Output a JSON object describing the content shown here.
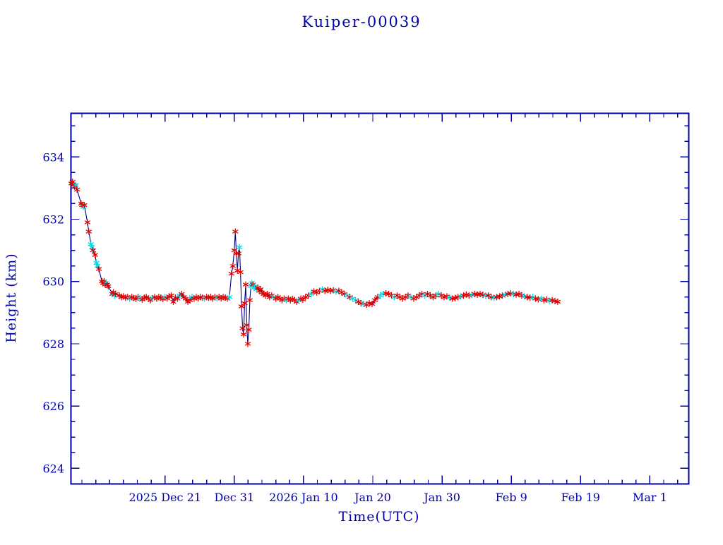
{
  "page": {
    "background": "#ffffff"
  },
  "chart_data": {
    "type": "line",
    "title": "Kuiper-00039",
    "xlabel": "Time(UTC)",
    "ylabel": "Height (km)",
    "legend": "none",
    "grid": false,
    "line_color": "#00008b",
    "axis_color": "#0000a8",
    "text_color": "#0000b2",
    "x_axis": {
      "days_relative_to": "2025 Dec 21",
      "range_days": [
        -13.58,
        75.62
      ],
      "minor_tick_step_days": 2,
      "ticks": [
        {
          "day": 0,
          "label": "2025 Dec 21"
        },
        {
          "day": 10,
          "label": "Dec 31"
        },
        {
          "day": 20,
          "label": "2026 Jan 10"
        },
        {
          "day": 30,
          "label": "Jan 20"
        },
        {
          "day": 40,
          "label": "Jan 30"
        },
        {
          "day": 50,
          "label": "Feb 9"
        },
        {
          "day": 60,
          "label": "Feb 19"
        },
        {
          "day": 70,
          "label": "Mar 1"
        }
      ]
    },
    "y_axis": {
      "range": [
        623.5,
        635.4
      ],
      "ticks": [
        624,
        626,
        628,
        630,
        632,
        634
      ],
      "minor_tick_step": 0.5
    },
    "series": [
      {
        "name": "height-red",
        "marker": "asterisk",
        "color": "#e00000"
      },
      {
        "name": "height-cyan",
        "marker": "asterisk",
        "color": "#00dce8"
      }
    ],
    "points_format": [
      "day_offset",
      "height_km",
      "series_index"
    ],
    "points": [
      [
        -13.5,
        633.15,
        0
      ],
      [
        -13.35,
        633.2,
        0
      ],
      [
        -13.2,
        633.1,
        0
      ],
      [
        -13.05,
        633.05,
        0
      ],
      [
        -12.9,
        633.1,
        1
      ],
      [
        -12.7,
        632.95,
        0
      ],
      [
        -12.1,
        632.5,
        0
      ],
      [
        -11.95,
        632.45,
        0
      ],
      [
        -11.8,
        632.4,
        1
      ],
      [
        -11.65,
        632.45,
        0
      ],
      [
        -11.2,
        631.9,
        0
      ],
      [
        -11.0,
        631.6,
        0
      ],
      [
        -10.7,
        631.2,
        1
      ],
      [
        -10.55,
        631.1,
        1
      ],
      [
        -10.4,
        631.0,
        0
      ],
      [
        -10.1,
        630.85,
        0
      ],
      [
        -9.9,
        630.6,
        1
      ],
      [
        -9.75,
        630.5,
        1
      ],
      [
        -9.55,
        630.4,
        0
      ],
      [
        -9.1,
        630.0,
        0
      ],
      [
        -8.95,
        629.95,
        0
      ],
      [
        -8.8,
        630.0,
        0
      ],
      [
        -8.65,
        629.9,
        0
      ],
      [
        -8.5,
        629.95,
        1
      ],
      [
        -8.35,
        629.9,
        0
      ],
      [
        -8.2,
        629.85,
        0
      ],
      [
        -7.6,
        629.6,
        0
      ],
      [
        -7.45,
        629.65,
        0
      ],
      [
        -7.3,
        629.55,
        1
      ],
      [
        -7.15,
        629.6,
        0
      ],
      [
        -6.6,
        629.55,
        0
      ],
      [
        -6.3,
        629.5,
        0
      ],
      [
        -6.0,
        629.52,
        0
      ],
      [
        -5.7,
        629.48,
        0
      ],
      [
        -5.4,
        629.5,
        0
      ],
      [
        -5.1,
        629.45,
        1
      ],
      [
        -4.8,
        629.5,
        0
      ],
      [
        -4.5,
        629.47,
        0
      ],
      [
        -4.2,
        629.44,
        0
      ],
      [
        -3.9,
        629.5,
        0
      ],
      [
        -3.6,
        629.46,
        1
      ],
      [
        -3.3,
        629.42,
        0
      ],
      [
        -3.0,
        629.48,
        0
      ],
      [
        -2.7,
        629.5,
        0
      ],
      [
        -2.4,
        629.45,
        0
      ],
      [
        -2.1,
        629.4,
        0
      ],
      [
        -1.8,
        629.47,
        1
      ],
      [
        -1.5,
        629.5,
        0
      ],
      [
        -1.2,
        629.45,
        0
      ],
      [
        -0.9,
        629.5,
        0
      ],
      [
        -0.6,
        629.48,
        0
      ],
      [
        -0.3,
        629.44,
        0
      ],
      [
        0,
        629.5,
        1
      ],
      [
        0.3,
        629.46,
        0
      ],
      [
        0.6,
        629.52,
        0
      ],
      [
        0.9,
        629.55,
        0
      ],
      [
        1.2,
        629.35,
        0
      ],
      [
        1.5,
        629.48,
        0
      ],
      [
        1.8,
        629.45,
        0
      ],
      [
        2.1,
        629.55,
        1
      ],
      [
        2.4,
        629.6,
        0
      ],
      [
        2.7,
        629.5,
        0
      ],
      [
        3.0,
        629.45,
        0
      ],
      [
        3.3,
        629.35,
        0
      ],
      [
        3.6,
        629.4,
        0
      ],
      [
        3.9,
        629.5,
        1
      ],
      [
        4.2,
        629.45,
        0
      ],
      [
        4.5,
        629.5,
        0
      ],
      [
        4.8,
        629.46,
        0
      ],
      [
        5.1,
        629.5,
        0
      ],
      [
        5.4,
        629.48,
        0
      ],
      [
        5.7,
        629.45,
        1
      ],
      [
        6.0,
        629.5,
        0
      ],
      [
        6.3,
        629.48,
        0
      ],
      [
        6.6,
        629.5,
        0
      ],
      [
        6.9,
        629.45,
        0
      ],
      [
        7.2,
        629.5,
        0
      ],
      [
        7.5,
        629.47,
        1
      ],
      [
        7.8,
        629.5,
        0
      ],
      [
        8.1,
        629.46,
        0
      ],
      [
        8.4,
        629.5,
        0
      ],
      [
        8.7,
        629.48,
        0
      ],
      [
        9.0,
        629.45,
        0
      ],
      [
        9.3,
        629.5,
        1
      ],
      [
        9.6,
        630.25,
        0
      ],
      [
        9.8,
        630.5,
        0
      ],
      [
        10.0,
        631.0,
        0
      ],
      [
        10.15,
        631.6,
        0
      ],
      [
        10.3,
        630.9,
        0
      ],
      [
        10.45,
        630.35,
        0
      ],
      [
        10.6,
        630.9,
        0
      ],
      [
        10.75,
        631.1,
        1
      ],
      [
        10.9,
        630.3,
        0
      ],
      [
        11.05,
        629.2,
        0
      ],
      [
        11.2,
        628.5,
        0
      ],
      [
        11.35,
        628.3,
        0
      ],
      [
        11.5,
        629.3,
        0
      ],
      [
        11.65,
        629.9,
        0
      ],
      [
        11.8,
        628.6,
        0
      ],
      [
        11.95,
        628.0,
        0
      ],
      [
        12.1,
        628.45,
        0
      ],
      [
        12.25,
        629.4,
        0
      ],
      [
        12.4,
        629.85,
        1
      ],
      [
        12.55,
        629.95,
        1
      ],
      [
        12.7,
        629.9,
        0
      ],
      [
        12.85,
        629.8,
        1
      ],
      [
        13.0,
        629.85,
        1
      ],
      [
        13.2,
        629.75,
        1
      ],
      [
        13.4,
        629.8,
        0
      ],
      [
        13.6,
        629.7,
        0
      ],
      [
        13.8,
        629.75,
        0
      ],
      [
        14.0,
        629.65,
        0
      ],
      [
        14.25,
        629.6,
        0
      ],
      [
        14.5,
        629.55,
        0
      ],
      [
        14.75,
        629.6,
        0
      ],
      [
        15.1,
        629.5,
        0
      ],
      [
        15.4,
        629.55,
        0
      ],
      [
        15.7,
        629.5,
        1
      ],
      [
        16.0,
        629.45,
        0
      ],
      [
        16.3,
        629.5,
        0
      ],
      [
        16.6,
        629.45,
        0
      ],
      [
        16.9,
        629.4,
        0
      ],
      [
        17.2,
        629.45,
        0
      ],
      [
        17.5,
        629.4,
        1
      ],
      [
        17.8,
        629.45,
        0
      ],
      [
        18.1,
        629.4,
        0
      ],
      [
        18.4,
        629.44,
        0
      ],
      [
        18.7,
        629.4,
        0
      ],
      [
        19.0,
        629.35,
        0
      ],
      [
        19.3,
        629.4,
        1
      ],
      [
        19.6,
        629.45,
        0
      ],
      [
        19.9,
        629.42,
        0
      ],
      [
        20.3,
        629.5,
        0
      ],
      [
        20.7,
        629.55,
        0
      ],
      [
        21.1,
        629.6,
        1
      ],
      [
        21.5,
        629.68,
        0
      ],
      [
        21.9,
        629.65,
        0
      ],
      [
        22.3,
        629.7,
        0
      ],
      [
        22.7,
        629.75,
        1
      ],
      [
        23.1,
        629.7,
        0
      ],
      [
        23.5,
        629.73,
        0
      ],
      [
        23.9,
        629.7,
        0
      ],
      [
        24.3,
        629.72,
        0
      ],
      [
        24.7,
        629.68,
        1
      ],
      [
        25.1,
        629.7,
        0
      ],
      [
        25.5,
        629.65,
        0
      ],
      [
        25.9,
        629.6,
        0
      ],
      [
        26.3,
        629.55,
        1
      ],
      [
        26.7,
        629.5,
        0
      ],
      [
        27.1,
        629.45,
        1
      ],
      [
        27.5,
        629.4,
        1
      ],
      [
        27.9,
        629.35,
        0
      ],
      [
        28.3,
        629.3,
        0
      ],
      [
        28.7,
        629.28,
        1
      ],
      [
        29.1,
        629.25,
        0
      ],
      [
        29.5,
        629.3,
        0
      ],
      [
        29.9,
        629.28,
        0
      ],
      [
        30.3,
        629.4,
        0
      ],
      [
        30.7,
        629.5,
        0
      ],
      [
        31.1,
        629.55,
        1
      ],
      [
        31.5,
        629.6,
        1
      ],
      [
        31.9,
        629.62,
        0
      ],
      [
        32.3,
        629.6,
        0
      ],
      [
        32.7,
        629.55,
        0
      ],
      [
        33.1,
        629.5,
        1
      ],
      [
        33.5,
        629.55,
        0
      ],
      [
        33.9,
        629.5,
        0
      ],
      [
        34.3,
        629.45,
        0
      ],
      [
        34.7,
        629.5,
        0
      ],
      [
        35.1,
        629.55,
        0
      ],
      [
        35.5,
        629.5,
        1
      ],
      [
        35.9,
        629.45,
        0
      ],
      [
        36.3,
        629.5,
        0
      ],
      [
        36.7,
        629.55,
        0
      ],
      [
        37.1,
        629.6,
        0
      ],
      [
        37.5,
        629.55,
        1
      ],
      [
        37.9,
        629.6,
        0
      ],
      [
        38.3,
        629.55,
        0
      ],
      [
        38.7,
        629.5,
        0
      ],
      [
        39.1,
        629.55,
        0
      ],
      [
        39.5,
        629.6,
        1
      ],
      [
        39.9,
        629.55,
        0
      ],
      [
        40.3,
        629.5,
        0
      ],
      [
        40.7,
        629.52,
        0
      ],
      [
        41.1,
        629.48,
        1
      ],
      [
        41.5,
        629.45,
        0
      ],
      [
        41.9,
        629.47,
        0
      ],
      [
        42.3,
        629.5,
        0
      ],
      [
        42.7,
        629.52,
        1
      ],
      [
        43.1,
        629.55,
        0
      ],
      [
        43.5,
        629.58,
        0
      ],
      [
        43.9,
        629.55,
        0
      ],
      [
        44.3,
        629.57,
        1
      ],
      [
        44.7,
        629.6,
        0
      ],
      [
        45.1,
        629.58,
        0
      ],
      [
        45.5,
        629.6,
        0
      ],
      [
        45.9,
        629.57,
        0
      ],
      [
        46.3,
        629.55,
        1
      ],
      [
        46.7,
        629.55,
        0
      ],
      [
        47.1,
        629.5,
        0
      ],
      [
        47.5,
        629.48,
        1
      ],
      [
        47.9,
        629.5,
        0
      ],
      [
        48.3,
        629.52,
        0
      ],
      [
        48.7,
        629.55,
        0
      ],
      [
        49.1,
        629.58,
        1
      ],
      [
        49.5,
        629.6,
        0
      ],
      [
        49.9,
        629.62,
        0
      ],
      [
        50.3,
        629.6,
        1
      ],
      [
        50.7,
        629.58,
        0
      ],
      [
        51.1,
        629.6,
        0
      ],
      [
        51.5,
        629.55,
        0
      ],
      [
        51.9,
        629.52,
        1
      ],
      [
        52.3,
        629.5,
        0
      ],
      [
        52.7,
        629.48,
        0
      ],
      [
        53.1,
        629.5,
        1
      ],
      [
        53.5,
        629.45,
        0
      ],
      [
        53.9,
        629.43,
        0
      ],
      [
        54.3,
        629.45,
        1
      ],
      [
        54.7,
        629.4,
        0
      ],
      [
        55.1,
        629.42,
        0
      ],
      [
        55.5,
        629.38,
        1
      ],
      [
        55.9,
        629.4,
        0
      ],
      [
        56.3,
        629.37,
        0
      ],
      [
        56.7,
        629.35,
        0
      ]
    ]
  }
}
